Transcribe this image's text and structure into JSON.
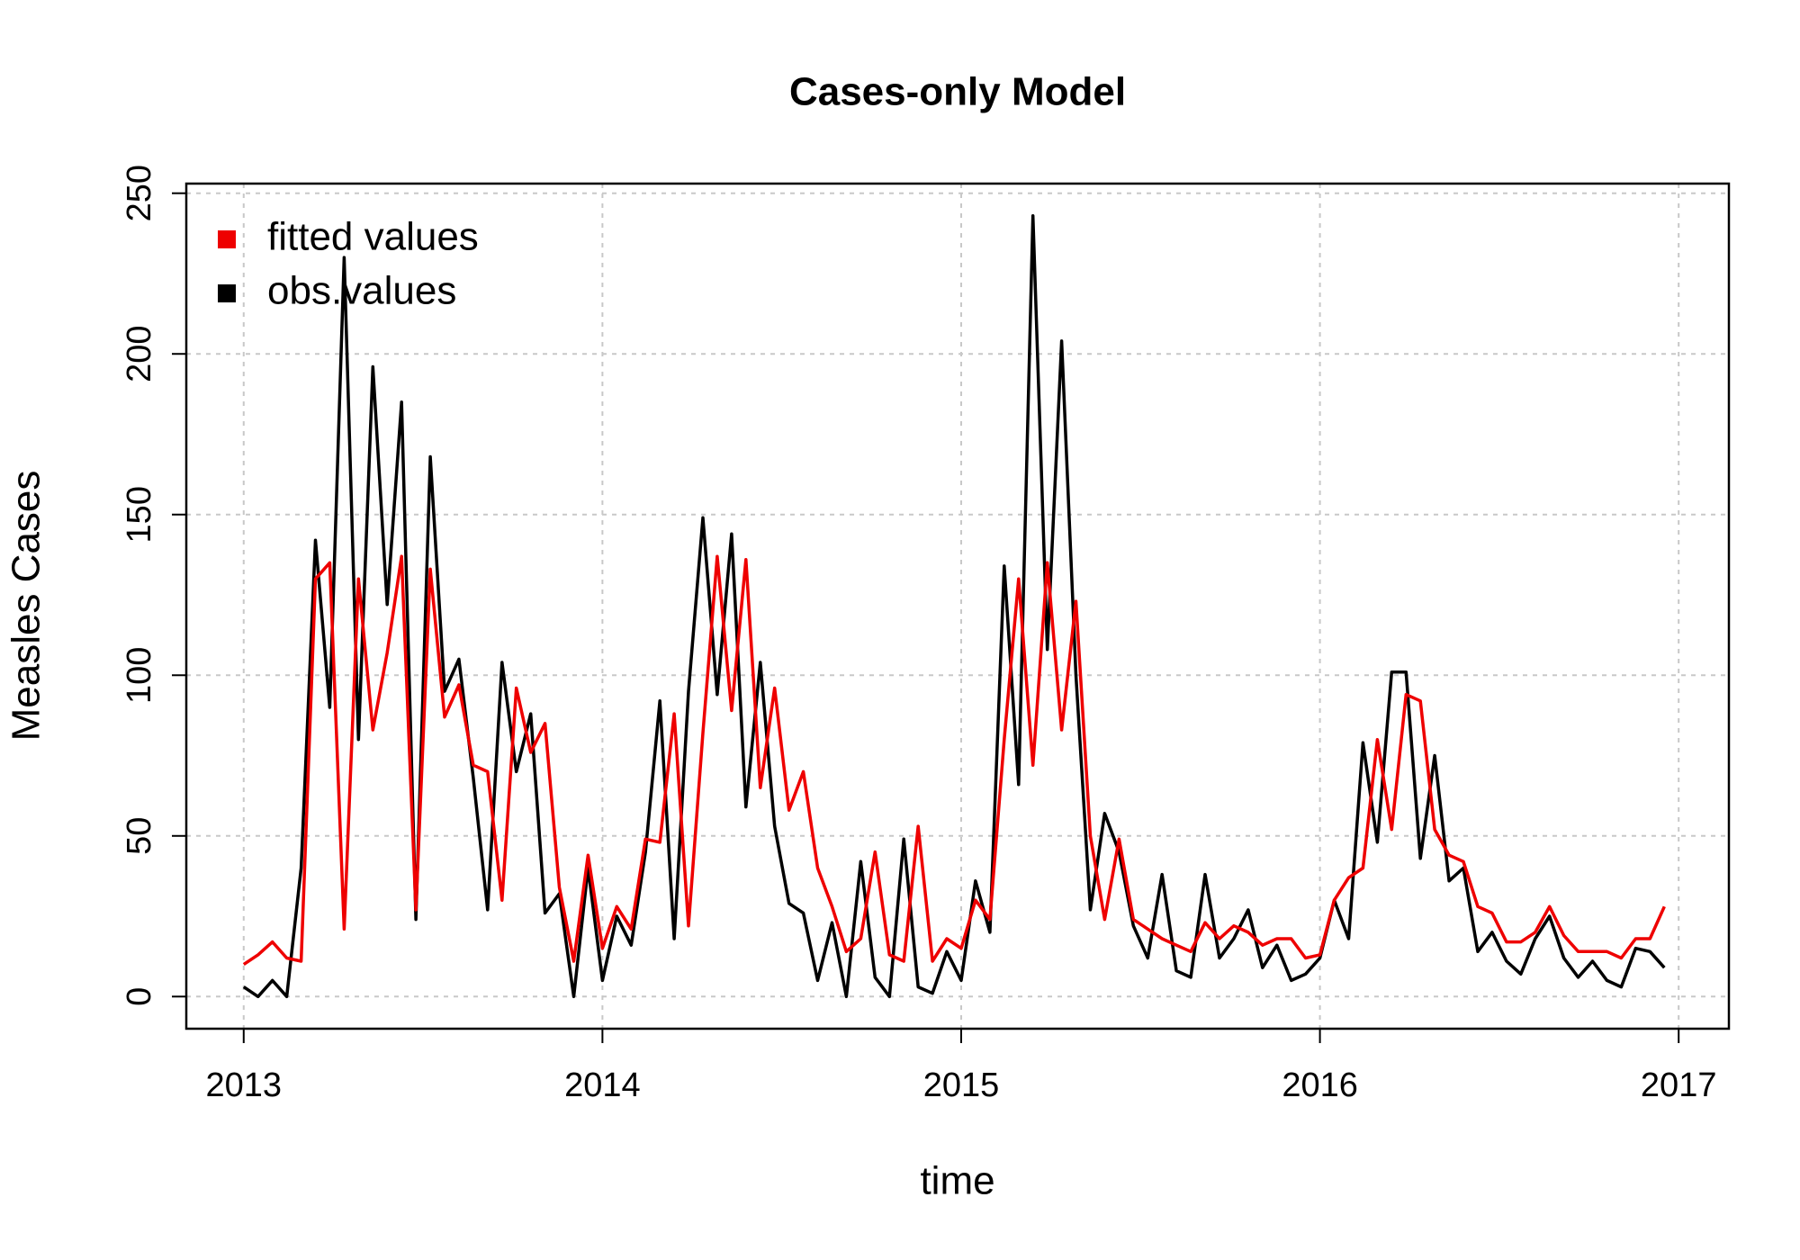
{
  "chart_data": {
    "type": "line",
    "title": "Cases-only Model",
    "x_label": "time",
    "y_label": "Measles Cases",
    "x": [
      2013.0,
      2013.04,
      2013.08,
      2013.12,
      2013.16,
      2013.2,
      2013.24,
      2013.28,
      2013.32,
      2013.36,
      2013.4,
      2013.44,
      2013.48,
      2013.52,
      2013.56,
      2013.6,
      2013.64,
      2013.68,
      2013.72,
      2013.76,
      2013.8,
      2013.84,
      2013.88,
      2013.92,
      2013.96,
      2014.0,
      2014.04,
      2014.08,
      2014.12,
      2014.16,
      2014.2,
      2014.24,
      2014.28,
      2014.32,
      2014.36,
      2014.4,
      2014.44,
      2014.48,
      2014.52,
      2014.56,
      2014.6,
      2014.64,
      2014.68,
      2014.72,
      2014.76,
      2014.8,
      2014.84,
      2014.88,
      2014.92,
      2014.96,
      2015.0,
      2015.04,
      2015.08,
      2015.12,
      2015.16,
      2015.2,
      2015.24,
      2015.28,
      2015.32,
      2015.36,
      2015.4,
      2015.44,
      2015.48,
      2015.52,
      2015.56,
      2015.6,
      2015.64,
      2015.68,
      2015.72,
      2015.76,
      2015.8,
      2015.84,
      2015.88,
      2015.92,
      2015.96,
      2016.0,
      2016.04,
      2016.08,
      2016.12,
      2016.16,
      2016.2,
      2016.24,
      2016.28,
      2016.32,
      2016.36,
      2016.4,
      2016.44,
      2016.48,
      2016.52,
      2016.56,
      2016.6,
      2016.64,
      2016.68,
      2016.72,
      2016.76,
      2016.8,
      2016.84,
      2016.88,
      2016.92,
      2016.96
    ],
    "series": [
      {
        "name": "fitted values",
        "color": "#ee0000",
        "values": [
          10,
          13,
          17,
          12,
          11,
          130,
          135,
          21,
          130,
          83,
          107,
          137,
          27,
          133,
          87,
          97,
          72,
          70,
          30,
          96,
          76,
          85,
          34,
          11,
          44,
          15,
          28,
          21,
          49,
          48,
          88,
          22,
          82,
          137,
          89,
          136,
          65,
          96,
          58,
          70,
          40,
          28,
          14,
          18,
          45,
          13,
          11,
          53,
          11,
          18,
          15,
          30,
          24,
          80,
          130,
          72,
          135,
          83,
          123,
          50,
          24,
          49,
          24,
          21,
          18,
          16,
          14,
          23,
          18,
          22,
          20,
          16,
          18,
          18,
          12,
          13,
          30,
          37,
          40,
          80,
          52,
          94,
          92,
          52,
          44,
          42,
          28,
          26,
          17,
          17,
          20,
          28,
          19,
          14,
          14,
          14,
          12,
          18,
          18,
          28
        ]
      },
      {
        "name": "obs.values",
        "color": "#000000",
        "values": [
          3,
          0,
          5,
          0,
          40,
          142,
          90,
          230,
          80,
          196,
          122,
          185,
          24,
          168,
          95,
          105,
          68,
          27,
          104,
          70,
          88,
          26,
          32,
          0,
          40,
          5,
          25,
          16,
          45,
          92,
          18,
          95,
          149,
          94,
          144,
          59,
          104,
          53,
          29,
          26,
          5,
          23,
          0,
          42,
          6,
          0,
          49,
          3,
          1,
          14,
          5,
          36,
          20,
          134,
          66,
          243,
          108,
          204,
          100,
          27,
          57,
          45,
          22,
          12,
          38,
          8,
          6,
          38,
          12,
          18,
          27,
          9,
          16,
          5,
          7,
          12,
          30,
          18,
          79,
          48,
          101,
          101,
          43,
          75,
          36,
          40,
          14,
          20,
          11,
          7,
          18,
          25,
          12,
          6,
          11,
          5,
          3,
          15,
          14,
          9
        ]
      }
    ],
    "xlim": [
      2012.84,
      2017.14
    ],
    "xticks": [
      2013,
      2014,
      2015,
      2016,
      2017
    ],
    "ylim": [
      -10,
      253
    ],
    "yticks": [
      0,
      50,
      100,
      150,
      200,
      250
    ],
    "grid": true,
    "legend": "top-left"
  }
}
